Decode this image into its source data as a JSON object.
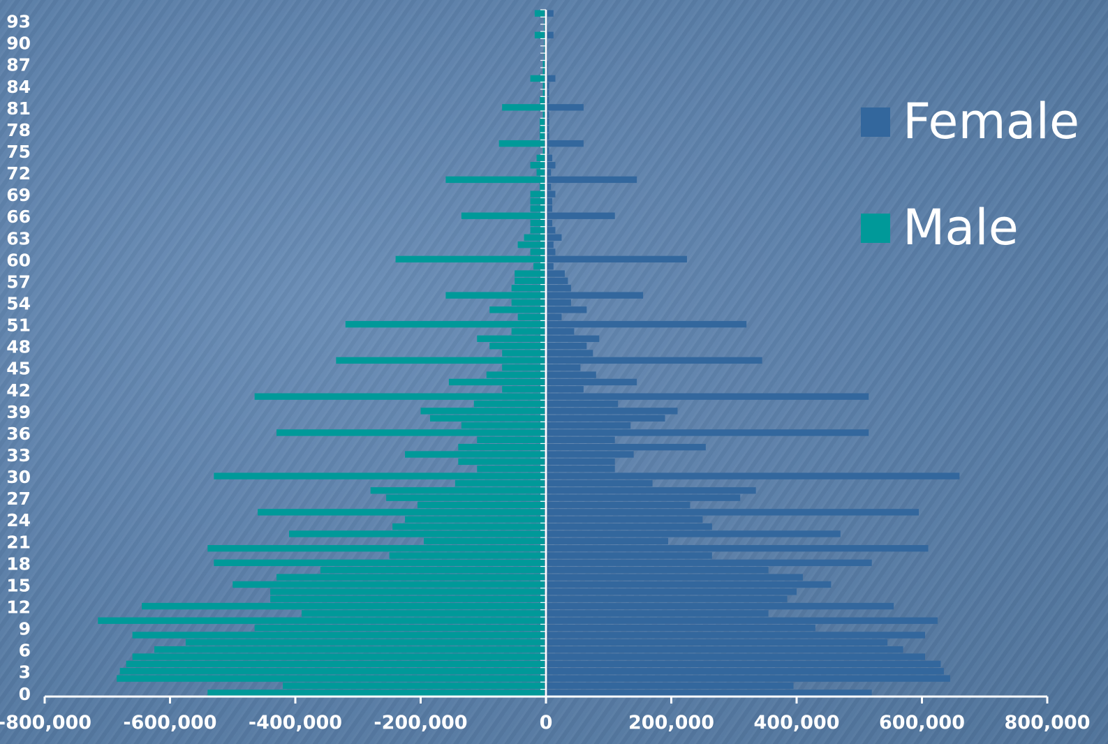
{
  "chart_data": {
    "type": "bar",
    "orientation": "horizontal",
    "stacked_mirror": true,
    "xlim": [
      -800000,
      800000
    ],
    "x_ticks": [
      -800000,
      -600000,
      -400000,
      -200000,
      0,
      200000,
      400000,
      600000,
      800000
    ],
    "x_tick_labels": [
      "-800,000",
      "-600,000",
      "-400,000",
      "-200,000",
      "0",
      "200,000",
      "400,000",
      "600,000",
      "800,000"
    ],
    "y_tick_labels": [
      "0",
      "3",
      "6",
      "9",
      "12",
      "15",
      "18",
      "21",
      "24",
      "27",
      "30",
      "33",
      "36",
      "39",
      "42",
      "45",
      "48",
      "51",
      "54",
      "57",
      "60",
      "63",
      "66",
      "69",
      "72",
      "75",
      "78",
      "81",
      "84",
      "87",
      "90",
      "93"
    ],
    "y_tick_values": [
      0,
      3,
      6,
      9,
      12,
      15,
      18,
      21,
      24,
      27,
      30,
      33,
      36,
      39,
      42,
      45,
      48,
      51,
      54,
      57,
      60,
      63,
      66,
      69,
      72,
      75,
      78,
      81,
      84,
      87,
      90,
      93
    ],
    "ages": [
      0,
      1,
      2,
      3,
      4,
      5,
      6,
      7,
      8,
      9,
      10,
      11,
      12,
      13,
      14,
      15,
      16,
      17,
      18,
      19,
      20,
      21,
      22,
      23,
      24,
      25,
      26,
      27,
      28,
      29,
      30,
      31,
      32,
      33,
      34,
      35,
      36,
      37,
      38,
      39,
      40,
      41,
      42,
      43,
      44,
      45,
      46,
      47,
      48,
      49,
      50,
      51,
      52,
      53,
      54,
      55,
      56,
      57,
      58,
      59,
      60,
      61,
      62,
      63,
      64,
      65,
      66,
      67,
      68,
      69,
      70,
      71,
      72,
      73,
      74,
      75,
      76,
      77,
      78,
      79,
      80,
      81,
      82,
      83,
      84,
      85,
      86,
      87,
      88,
      89,
      90,
      91,
      92,
      93,
      94
    ],
    "grid": false,
    "legend_position": "right",
    "series": [
      {
        "name": "Female",
        "color": "#33679d",
        "values": [
          520000,
          395000,
          645000,
          635000,
          630000,
          605000,
          570000,
          545000,
          605000,
          430000,
          625000,
          355000,
          555000,
          385000,
          400000,
          455000,
          410000,
          355000,
          520000,
          265000,
          610000,
          195000,
          470000,
          265000,
          250000,
          595000,
          230000,
          310000,
          335000,
          170000,
          660000,
          110000,
          110000,
          140000,
          255000,
          110000,
          515000,
          135000,
          190000,
          210000,
          115000,
          515000,
          60000,
          145000,
          80000,
          55000,
          345000,
          75000,
          65000,
          85000,
          45000,
          320000,
          25000,
          65000,
          40000,
          155000,
          40000,
          35000,
          30000,
          12000,
          225000,
          15000,
          12000,
          25000,
          15000,
          10000,
          110000,
          10000,
          10000,
          15000,
          8000,
          145000,
          8000,
          15000,
          10000,
          5000,
          60000,
          5000,
          5000,
          5000,
          5000,
          60000,
          5000,
          5000,
          5000,
          15000,
          3000,
          3000,
          2000,
          2000,
          2000,
          12000,
          2000,
          2000,
          12000
        ]
      },
      {
        "name": "Male",
        "color": "#009999",
        "values": [
          -540000,
          -420000,
          -685000,
          -680000,
          -670000,
          -660000,
          -625000,
          -575000,
          -660000,
          -465000,
          -715000,
          -390000,
          -645000,
          -440000,
          -440000,
          -500000,
          -430000,
          -360000,
          -530000,
          -250000,
          -540000,
          -195000,
          -410000,
          -245000,
          -225000,
          -460000,
          -205000,
          -255000,
          -280000,
          -145000,
          -530000,
          -110000,
          -140000,
          -225000,
          -140000,
          -110000,
          -430000,
          -135000,
          -185000,
          -200000,
          -115000,
          -465000,
          -70000,
          -155000,
          -95000,
          -70000,
          -335000,
          -70000,
          -90000,
          -110000,
          -55000,
          -320000,
          -45000,
          -90000,
          -55000,
          -160000,
          -55000,
          -50000,
          -50000,
          -20000,
          -240000,
          -25000,
          -45000,
          -35000,
          -25000,
          -25000,
          -135000,
          -25000,
          -25000,
          -25000,
          -10000,
          -160000,
          -15000,
          -25000,
          -15000,
          -5000,
          -75000,
          -10000,
          -10000,
          -10000,
          -5000,
          -70000,
          -10000,
          -5000,
          -5000,
          -25000,
          -5000,
          -5000,
          -3000,
          -3000,
          -3000,
          -18000,
          -3000,
          -3000,
          -18000
        ]
      }
    ]
  },
  "background": "#5b7fa8"
}
